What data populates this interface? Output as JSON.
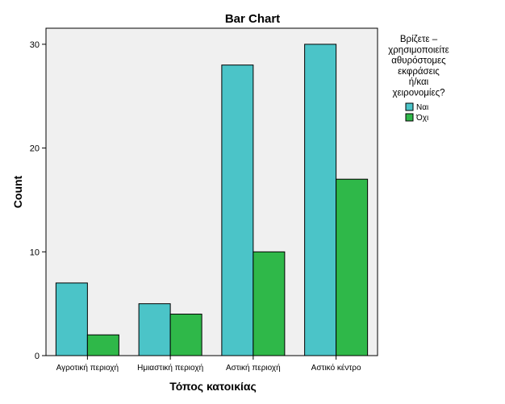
{
  "chart_data": {
    "type": "bar",
    "title": "Bar Chart",
    "xlabel": "Τόπος κατοικίας",
    "ylabel": "Count",
    "categories": [
      "Αγροτική περιοχή",
      "Ημιαστική περιοχή",
      "Αστική περιοχή",
      "Αστικό κέντρο"
    ],
    "series": [
      {
        "name": "Ναι",
        "color": "#4bc4c8",
        "values": [
          7,
          5,
          28,
          30
        ]
      },
      {
        "name": "Όχι",
        "color": "#2fb849",
        "values": [
          2,
          4,
          10,
          17
        ]
      }
    ],
    "ylim": [
      0,
      32
    ],
    "yticks": [
      0,
      10,
      20,
      30
    ],
    "legend": {
      "title_lines": [
        "Βρίζετε –",
        "χρησιμοποιείτε",
        "αθυρόστομες",
        "εκφράσεις",
        "ή/και",
        "χειρονομίες?"
      ],
      "position": "right"
    },
    "plot_background": "#f0f0f0",
    "grid": false
  }
}
